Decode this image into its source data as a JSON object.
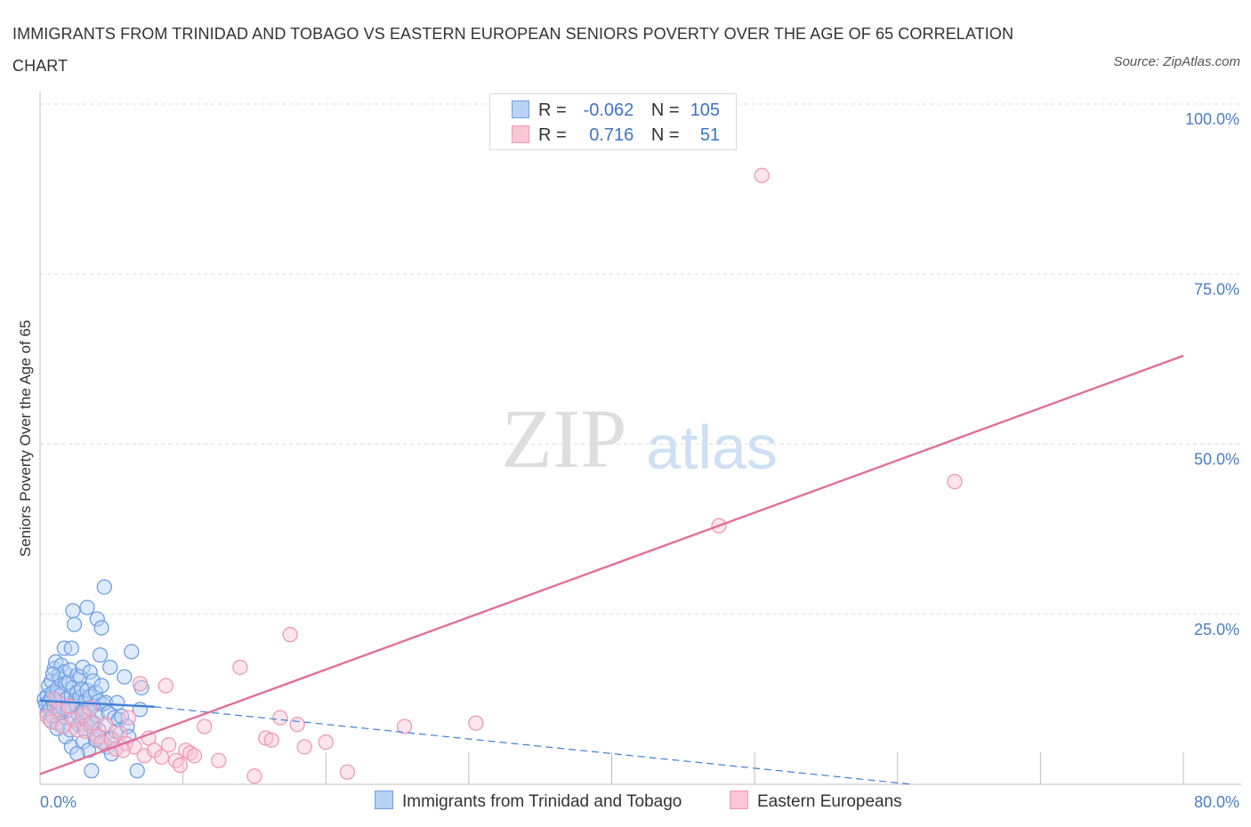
{
  "title": "IMMIGRANTS FROM TRINIDAD AND TOBAGO VS EASTERN EUROPEAN SENIORS POVERTY OVER THE AGE OF 65 CORRELATION CHART",
  "source": "Source: ZipAtlas.com",
  "watermark": {
    "zip": "ZIP",
    "atlas": "atlas"
  },
  "legend": {
    "r_label": "R =",
    "n_label": "N =",
    "rows": [
      {
        "name": "Immigrants from Trinidad and Tobago",
        "r": "-0.062",
        "n": "105",
        "fill": "#b9d3f5",
        "stroke": "#6f9fe3"
      },
      {
        "name": "Eastern Europeans",
        "r": "0.716",
        "n": "51",
        "fill": "#f9c6d6",
        "stroke": "#ee9ab5"
      }
    ]
  },
  "chart_data": {
    "type": "scatter",
    "title": "IMMIGRANTS FROM TRINIDAD AND TOBAGO VS EASTERN EUROPEAN SENIORS POVERTY OVER THE AGE OF 65 CORRELATION CHART",
    "xlabel": "",
    "ylabel": "Seniors Poverty Over the Age of 65",
    "xlim": [
      0,
      80
    ],
    "ylim": [
      0,
      100
    ],
    "x_tick_labels": [
      {
        "value": 0,
        "label": "0.0%"
      },
      {
        "value": 80,
        "label": "80.0%"
      }
    ],
    "y_tick_labels": [
      {
        "value": 100,
        "label": "100.0%"
      },
      {
        "value": 75,
        "label": "75.0%"
      },
      {
        "value": 50,
        "label": "50.0%"
      },
      {
        "value": 25,
        "label": "25.0%"
      }
    ],
    "grid": true,
    "series": [
      {
        "name": "Immigrants from Trinidad and Tobago",
        "color": "#6f9fe3",
        "fill": "#b9d3f5",
        "trend_color": "#3d7fd6",
        "trend": {
          "solid": [
            [
              0,
              12.3
            ],
            [
              8,
              11.4
            ]
          ],
          "dashed": [
            [
              8,
              11.4
            ],
            [
              61,
              0
            ]
          ]
        },
        "points": [
          [
            0.3,
            12.5
          ],
          [
            0.4,
            11.8
          ],
          [
            0.5,
            13.0
          ],
          [
            0.5,
            10.5
          ],
          [
            0.6,
            12.0
          ],
          [
            0.6,
            14.5
          ],
          [
            0.7,
            11.0
          ],
          [
            0.7,
            9.5
          ],
          [
            0.8,
            12.8
          ],
          [
            0.8,
            15.2
          ],
          [
            0.9,
            13.5
          ],
          [
            0.9,
            10.0
          ],
          [
            1.0,
            17.0
          ],
          [
            1.0,
            11.5
          ],
          [
            1.1,
            18.0
          ],
          [
            1.1,
            12.2
          ],
          [
            1.2,
            14.0
          ],
          [
            1.2,
            9.0
          ],
          [
            1.3,
            16.0
          ],
          [
            1.3,
            12.0
          ],
          [
            1.4,
            15.5
          ],
          [
            1.4,
            10.5
          ],
          [
            1.5,
            17.5
          ],
          [
            1.5,
            13.2
          ],
          [
            1.6,
            11.2
          ],
          [
            1.6,
            8.5
          ],
          [
            1.7,
            16.5
          ],
          [
            1.7,
            20.0
          ],
          [
            1.8,
            14.8
          ],
          [
            1.8,
            7.0
          ],
          [
            1.9,
            12.6
          ],
          [
            1.9,
            10.8
          ],
          [
            2.0,
            15.0
          ],
          [
            2.0,
            11.0
          ],
          [
            2.1,
            16.8
          ],
          [
            2.1,
            8.0
          ],
          [
            2.2,
            13.0
          ],
          [
            2.2,
            5.5
          ],
          [
            2.3,
            14.2
          ],
          [
            2.3,
            25.5
          ],
          [
            2.4,
            9.8
          ],
          [
            2.4,
            23.5
          ],
          [
            2.5,
            12.4
          ],
          [
            2.5,
            11.8
          ],
          [
            2.6,
            13.5
          ],
          [
            2.6,
            16.0
          ],
          [
            2.7,
            10.2
          ],
          [
            2.7,
            8.8
          ],
          [
            2.8,
            15.8
          ],
          [
            2.8,
            12.8
          ],
          [
            2.9,
            9.2
          ],
          [
            2.9,
            14.0
          ],
          [
            3.0,
            17.2
          ],
          [
            3.0,
            6.2
          ],
          [
            3.1,
            11.0
          ],
          [
            3.1,
            8.2
          ],
          [
            3.2,
            12.3
          ],
          [
            3.2,
            9.5
          ],
          [
            3.3,
            13.8
          ],
          [
            3.3,
            26.0
          ],
          [
            3.4,
            10.6
          ],
          [
            3.4,
            5.0
          ],
          [
            3.5,
            12.9
          ],
          [
            3.5,
            16.5
          ],
          [
            3.6,
            8.5
          ],
          [
            3.6,
            2.0
          ],
          [
            3.7,
            15.2
          ],
          [
            3.7,
            11.5
          ],
          [
            3.8,
            9.0
          ],
          [
            3.8,
            7.5
          ],
          [
            3.9,
            13.5
          ],
          [
            3.9,
            6.5
          ],
          [
            4.0,
            24.3
          ],
          [
            4.0,
            10.0
          ],
          [
            4.1,
            12.2
          ],
          [
            4.1,
            8.0
          ],
          [
            4.2,
            19.0
          ],
          [
            4.3,
            23.0
          ],
          [
            4.3,
            14.5
          ],
          [
            4.4,
            11.8
          ],
          [
            4.5,
            29.0
          ],
          [
            4.5,
            6.0
          ],
          [
            4.6,
            12.0
          ],
          [
            4.7,
            5.5
          ],
          [
            4.8,
            10.5
          ],
          [
            4.9,
            17.2
          ],
          [
            5.0,
            6.8
          ],
          [
            5.0,
            4.5
          ],
          [
            5.2,
            9.8
          ],
          [
            5.3,
            7.8
          ],
          [
            5.4,
            12.0
          ],
          [
            5.5,
            9.5
          ],
          [
            5.7,
            10.0
          ],
          [
            5.9,
            15.8
          ],
          [
            6.1,
            8.5
          ],
          [
            6.2,
            7.0
          ],
          [
            6.4,
            19.5
          ],
          [
            6.8,
            2.0
          ],
          [
            7.0,
            11.0
          ],
          [
            7.1,
            14.2
          ],
          [
            1.2,
            8.2
          ],
          [
            2.6,
            4.5
          ],
          [
            3.0,
            10.6
          ],
          [
            0.9,
            16.2
          ],
          [
            2.2,
            20.0
          ]
        ]
      },
      {
        "name": "Eastern Europeans",
        "color": "#ee9ab5",
        "fill": "#f9c6d6",
        "trend_color": "#e46d98",
        "trend": {
          "solid": [
            [
              0,
              1.5
            ],
            [
              80,
              63.0
            ]
          ]
        },
        "points": [
          [
            0.5,
            10.0
          ],
          [
            0.8,
            9.2
          ],
          [
            1.0,
            12.5
          ],
          [
            1.3,
            11.0
          ],
          [
            1.6,
            8.5
          ],
          [
            2.0,
            11.5
          ],
          [
            2.3,
            9.5
          ],
          [
            2.6,
            8.0
          ],
          [
            3.0,
            10.2
          ],
          [
            3.2,
            7.8
          ],
          [
            3.6,
            9.0
          ],
          [
            4.0,
            7.0
          ],
          [
            4.3,
            6.2
          ],
          [
            4.6,
            8.8
          ],
          [
            5.0,
            6.5
          ],
          [
            5.3,
            5.2
          ],
          [
            5.6,
            7.5
          ],
          [
            6.0,
            6.0
          ],
          [
            6.2,
            9.8
          ],
          [
            6.6,
            5.5
          ],
          [
            7.0,
            14.8
          ],
          [
            7.3,
            4.2
          ],
          [
            7.6,
            6.8
          ],
          [
            8.0,
            5.0
          ],
          [
            8.8,
            14.5
          ],
          [
            8.5,
            4.0
          ],
          [
            9.0,
            5.8
          ],
          [
            9.5,
            3.5
          ],
          [
            9.8,
            2.8
          ],
          [
            10.2,
            5.0
          ],
          [
            10.5,
            4.6
          ],
          [
            10.8,
            4.2
          ],
          [
            11.5,
            8.5
          ],
          [
            14.0,
            17.2
          ],
          [
            15.0,
            1.2
          ],
          [
            15.8,
            6.8
          ],
          [
            16.2,
            6.5
          ],
          [
            16.8,
            9.8
          ],
          [
            17.5,
            22.0
          ],
          [
            18.0,
            8.8
          ],
          [
            18.5,
            5.5
          ],
          [
            20.0,
            6.2
          ],
          [
            21.5,
            1.8
          ],
          [
            25.5,
            8.5
          ],
          [
            30.5,
            9.0
          ],
          [
            47.5,
            38.0
          ],
          [
            50.5,
            89.5
          ],
          [
            64.0,
            44.5
          ],
          [
            5.8,
            5.0
          ],
          [
            12.5,
            3.5
          ],
          [
            3.5,
            11.2
          ]
        ]
      }
    ]
  }
}
